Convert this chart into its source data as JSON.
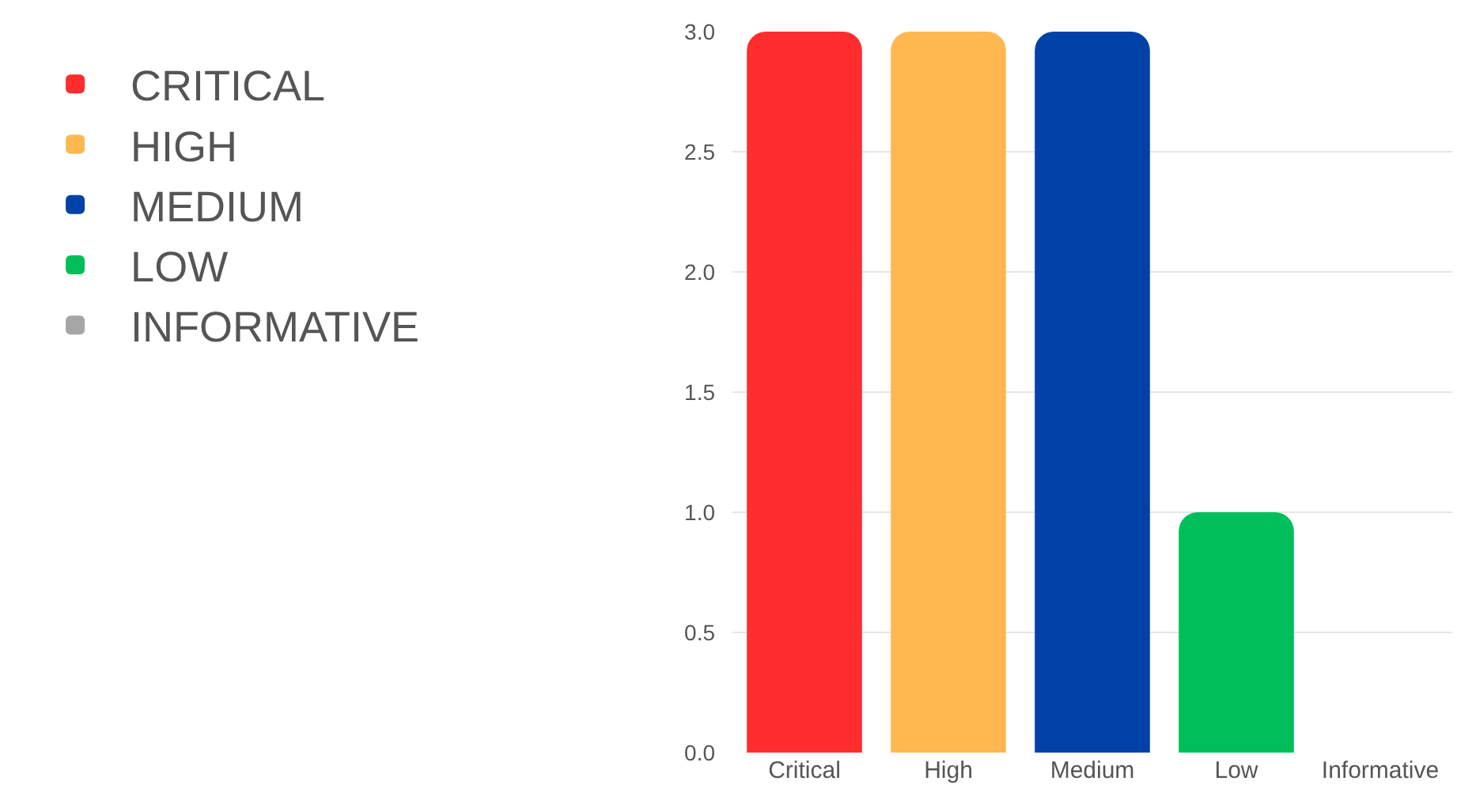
{
  "chart_data": {
    "type": "bar",
    "categories": [
      "Critical",
      "High",
      "Medium",
      "Low",
      "Informative"
    ],
    "series": [
      {
        "name": "CRITICAL",
        "color": "#ff2d2d",
        "values": [
          3,
          null,
          null,
          null,
          null
        ]
      },
      {
        "name": "HIGH",
        "color": "#ffb74f",
        "values": [
          null,
          3,
          null,
          null,
          null
        ]
      },
      {
        "name": "MEDIUM",
        "color": "#0042a8",
        "values": [
          null,
          null,
          3,
          null,
          null
        ]
      },
      {
        "name": "LOW",
        "color": "#00bf5a",
        "values": [
          null,
          null,
          null,
          1,
          null
        ]
      },
      {
        "name": "INFORMATIVE",
        "color": "#a6a6a6",
        "values": [
          null,
          null,
          null,
          null,
          0
        ]
      }
    ],
    "ylim": [
      0,
      3
    ],
    "yticks": [
      {
        "value": 0,
        "label": "0.0"
      },
      {
        "value": 0.5,
        "label": "0.5"
      },
      {
        "value": 1,
        "label": "1.0"
      },
      {
        "value": 1.5,
        "label": "1.5"
      },
      {
        "value": 2,
        "label": "2.0"
      },
      {
        "value": 2.5,
        "label": "2.5"
      },
      {
        "value": 3,
        "label": "3.0"
      }
    ],
    "grid": "y",
    "legend": "left"
  }
}
